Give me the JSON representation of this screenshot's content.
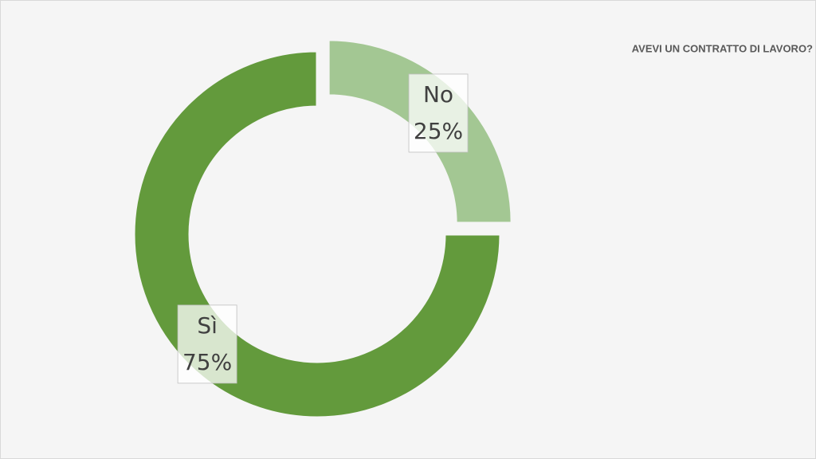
{
  "chart_data": {
    "type": "donut",
    "title": "AVEVI UN CONTRATTO DI LAVORO?",
    "categories": [
      "No",
      "Sì"
    ],
    "values": [
      25,
      75
    ],
    "value_labels": [
      "25%",
      "75%"
    ],
    "colors": [
      "#a3c793",
      "#639a3c"
    ],
    "exploded": [
      true,
      false
    ]
  }
}
